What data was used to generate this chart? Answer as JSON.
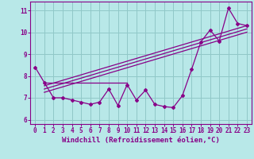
{
  "title": "",
  "xlabel": "Windchill (Refroidissement éolien,°C)",
  "ylabel": "",
  "background_color": "#b8e8e8",
  "grid_color": "#90c8c8",
  "line_color": "#880088",
  "x": [
    0,
    1,
    2,
    3,
    4,
    5,
    6,
    7,
    8,
    9,
    10,
    11,
    12,
    13,
    14,
    15,
    16,
    17,
    18,
    19,
    20,
    21,
    22,
    23
  ],
  "y_main": [
    8.4,
    7.7,
    7.0,
    7.0,
    6.9,
    6.8,
    6.7,
    6.8,
    7.4,
    6.65,
    7.6,
    6.9,
    7.35,
    6.7,
    6.6,
    6.55,
    7.1,
    8.3,
    9.55,
    10.1,
    9.6,
    11.1,
    10.4,
    10.3
  ],
  "trend1_x": [
    1,
    10
  ],
  "trend1_y": [
    7.7,
    7.7
  ],
  "trend2_x": [
    1,
    23
  ],
  "trend2_y": [
    7.55,
    10.3
  ],
  "trend3_x": [
    1,
    23
  ],
  "trend3_y": [
    7.4,
    10.15
  ],
  "trend4_x": [
    1,
    23
  ],
  "trend4_y": [
    7.25,
    10.0
  ],
  "ylim": [
    5.8,
    11.4
  ],
  "xlim": [
    -0.5,
    23.5
  ],
  "yticks": [
    6,
    7,
    8,
    9,
    10,
    11
  ],
  "xticks": [
    0,
    1,
    2,
    3,
    4,
    5,
    6,
    7,
    8,
    9,
    10,
    11,
    12,
    13,
    14,
    15,
    16,
    17,
    18,
    19,
    20,
    21,
    22,
    23
  ],
  "tick_fontsize": 5.5,
  "xlabel_fontsize": 6.5
}
